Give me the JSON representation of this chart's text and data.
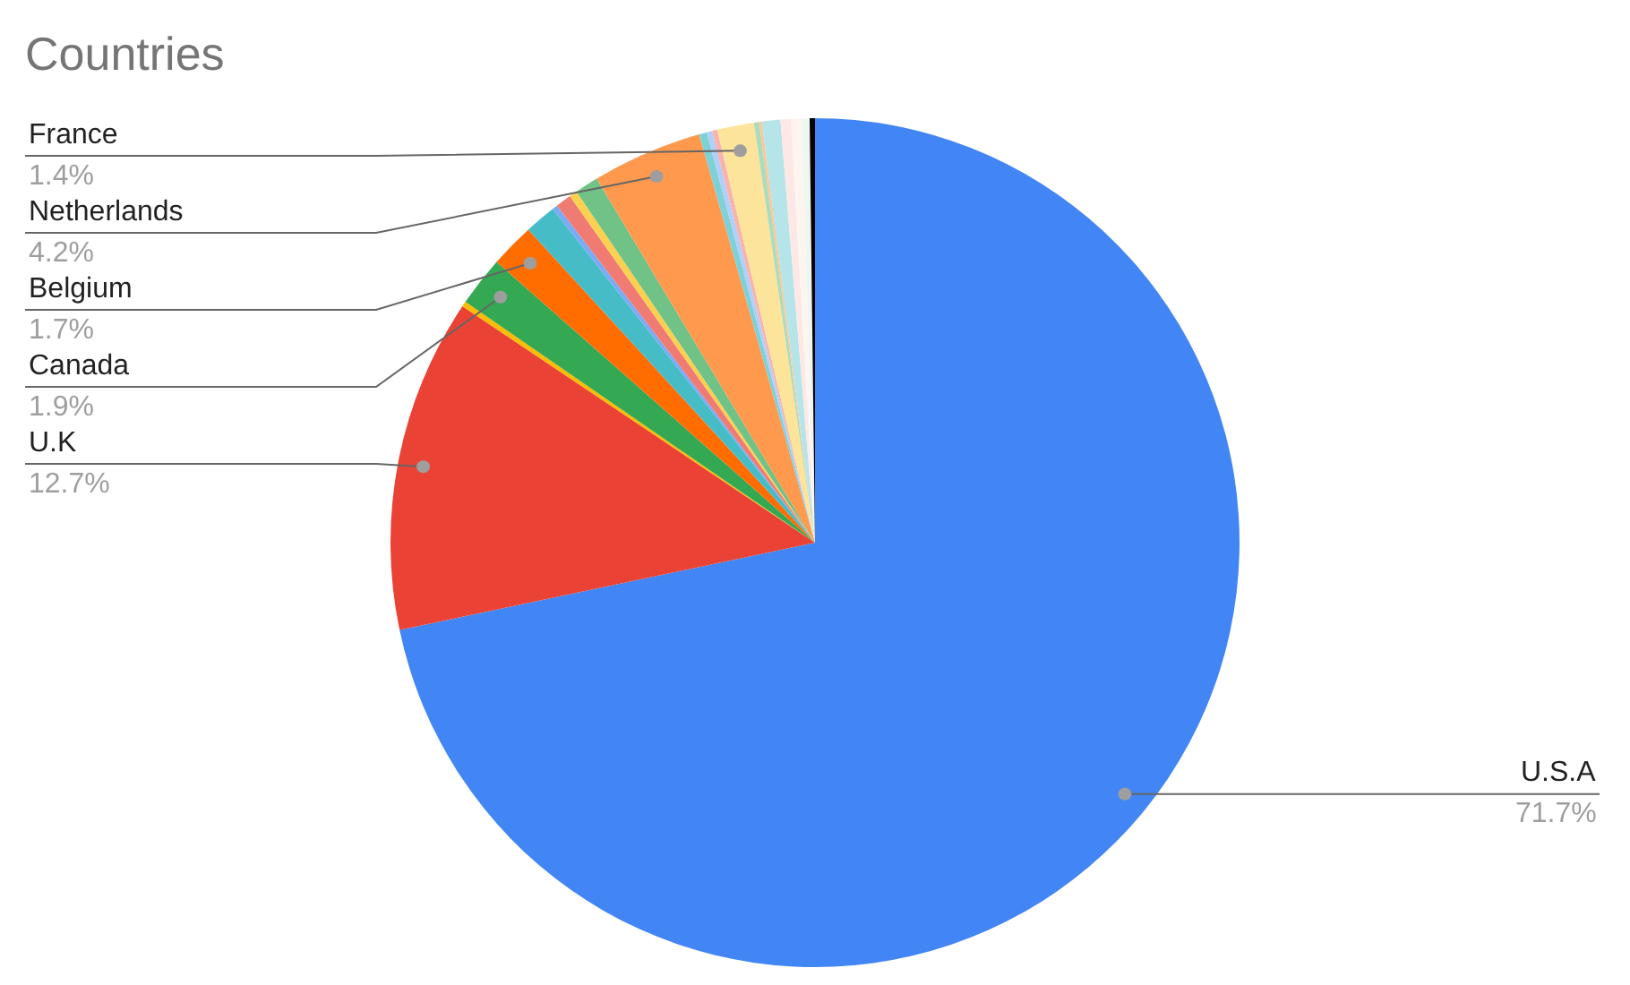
{
  "chart_data": {
    "type": "pie",
    "title": "Countries",
    "categories": [
      "U.S.A",
      "U.K",
      null,
      "Canada",
      "Belgium",
      null,
      null,
      null,
      null,
      null,
      "Netherlands",
      null,
      null,
      null,
      "France",
      null,
      null,
      null,
      null,
      null,
      null,
      null
    ],
    "values": [
      71.7,
      12.7,
      0.2,
      1.9,
      1.7,
      1.2,
      0.2,
      0.6,
      0.3,
      0.9,
      4.2,
      0.3,
      0.2,
      0.2,
      1.4,
      0.2,
      0.1,
      0.7,
      0.4,
      0.4,
      0.3,
      0.2
    ],
    "value_labels": [
      "71.7%",
      "12.7%",
      null,
      "1.9%",
      "1.7%",
      null,
      null,
      null,
      null,
      null,
      "4.2%",
      null,
      null,
      null,
      "1.4%",
      null,
      null,
      null,
      null,
      null,
      null,
      null
    ],
    "colors": [
      "#4285f4",
      "#ea4335",
      "#fbbc04",
      "#34a853",
      "#ff6d01",
      "#46bdc6",
      "#7baaf7",
      "#f07b72",
      "#fcd04f",
      "#71c287",
      "#ff994d",
      "#7ed1d7",
      "#b3cefb",
      "#f7b4ae",
      "#fde49b",
      "#aedcba",
      "#ffc599",
      "#b5e5e8",
      "#fde8e6",
      "#fef5f0",
      "#eef6f0",
      "#000000"
    ],
    "legend": false
  }
}
